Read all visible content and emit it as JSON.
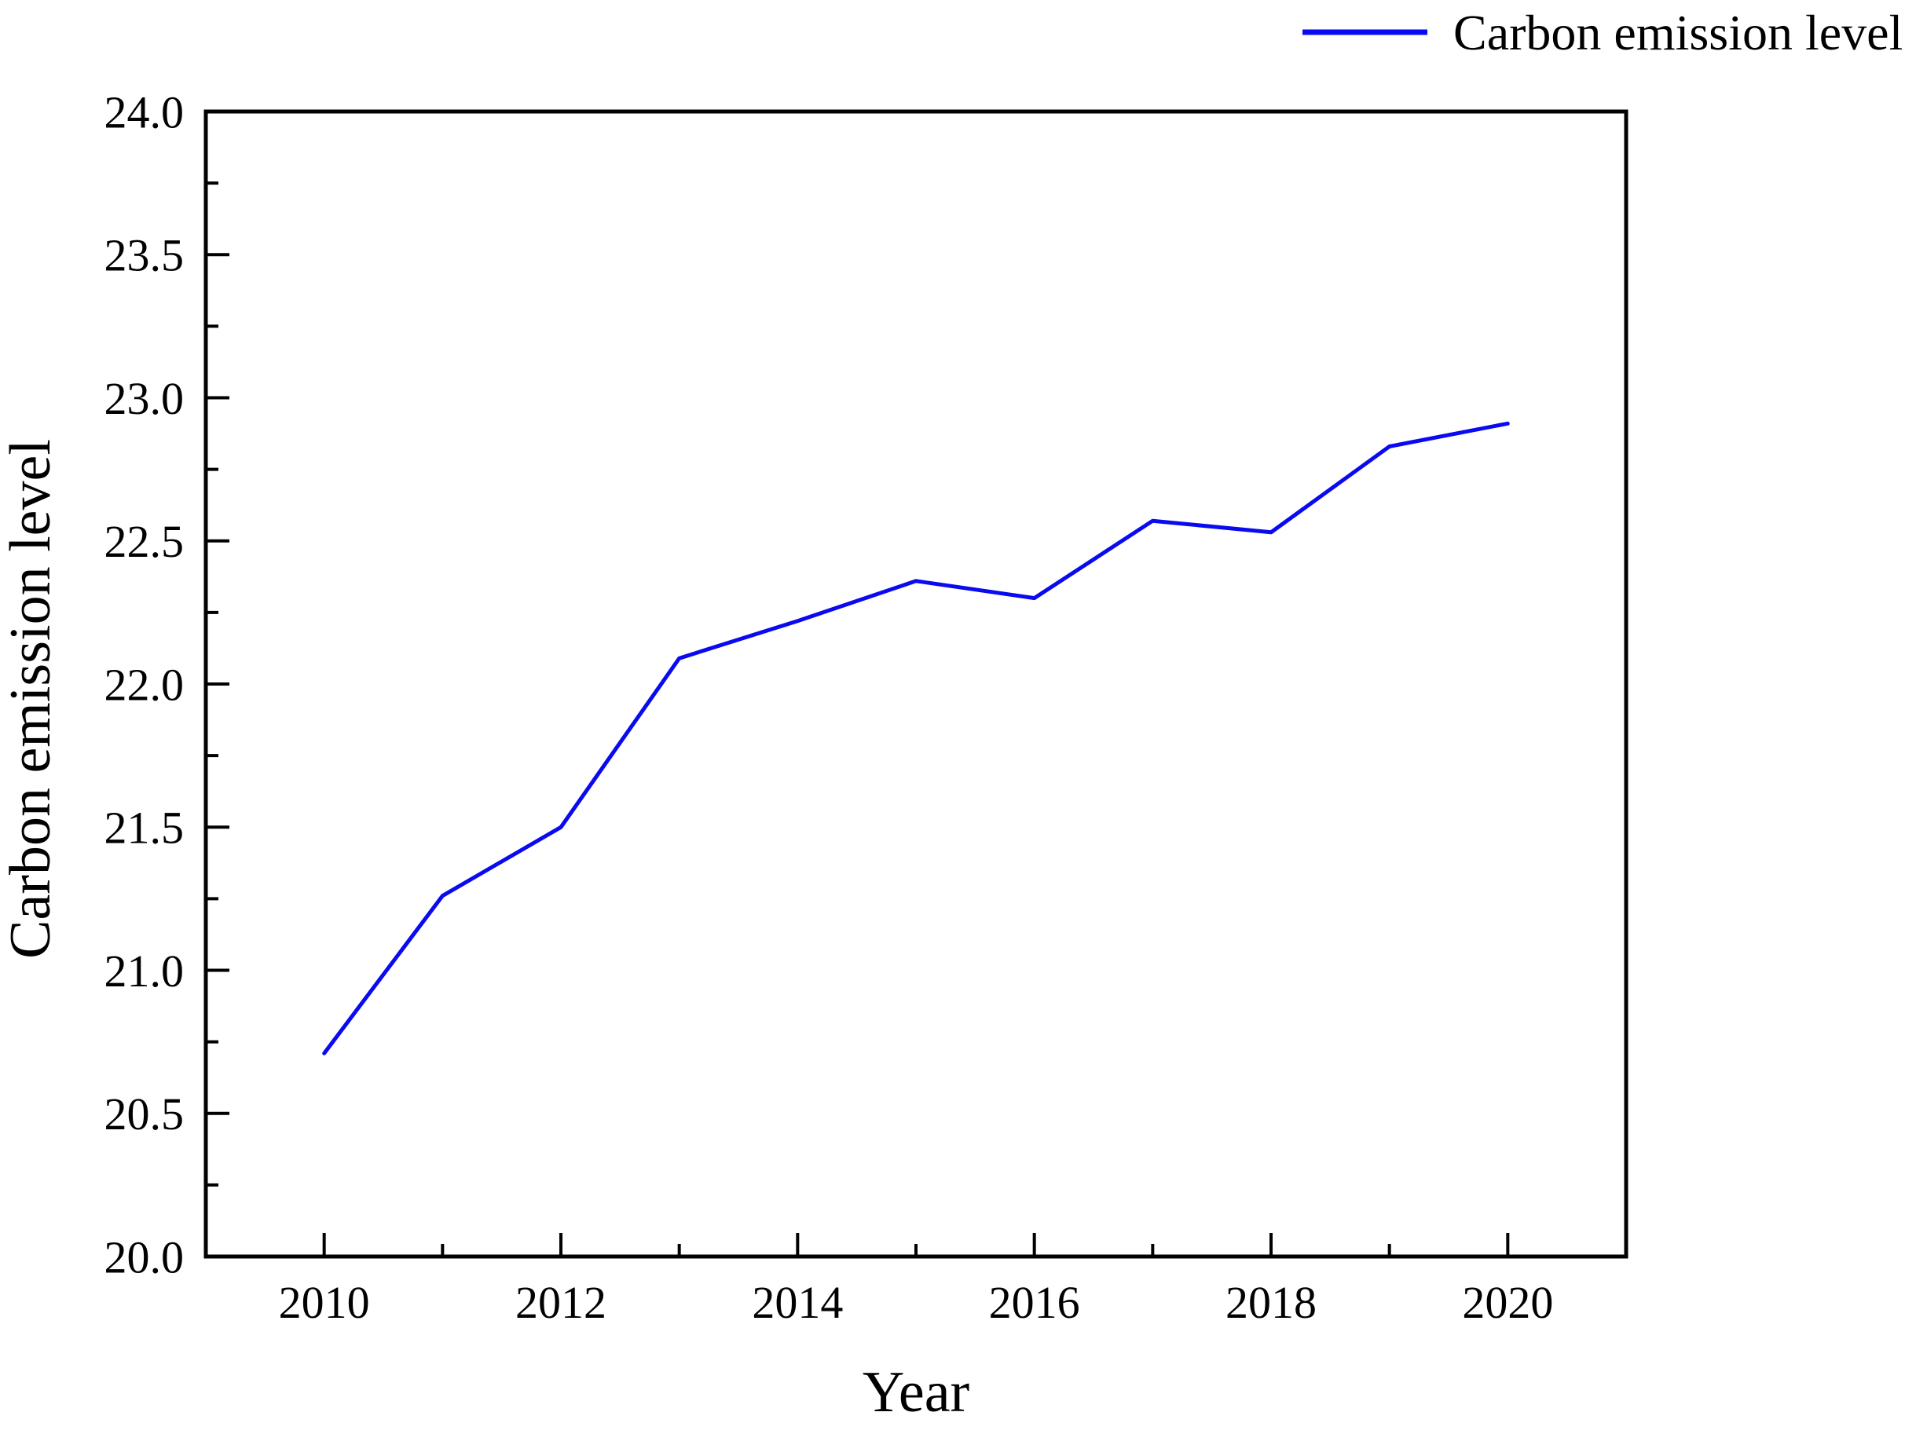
{
  "figure": {
    "background": "#ffffff"
  },
  "legend": {
    "label": "Carbon emission level",
    "position": "top-right-outside"
  },
  "axes": {
    "xlabel": "Year",
    "ylabel": "Carbon emission level"
  },
  "colors": {
    "line": "#0a0af0",
    "axis": "#000000",
    "text": "#000000",
    "background": "#ffffff"
  },
  "chart_data": {
    "type": "line",
    "title": "",
    "xlabel": "Year",
    "ylabel": "Carbon emission level",
    "x": [
      2010,
      2011,
      2012,
      2013,
      2014,
      2015,
      2016,
      2017,
      2018,
      2019,
      2020
    ],
    "series": [
      {
        "name": "Carbon emission level",
        "color": "#0a0af0",
        "values": [
          20.71,
          21.26,
          21.5,
          22.09,
          22.22,
          22.36,
          22.3,
          22.57,
          22.53,
          22.83,
          22.91
        ]
      }
    ],
    "xlim": [
      2009,
      2021
    ],
    "ylim": [
      20.0,
      24.0
    ],
    "x_major_ticks": [
      2010,
      2012,
      2014,
      2016,
      2018,
      2020
    ],
    "x_tick_labels": [
      "2010",
      "2012",
      "2014",
      "2016",
      "2018",
      "2020"
    ],
    "x_minor_ticks": [
      2011,
      2013,
      2015,
      2017,
      2019
    ],
    "y_major_ticks": [
      20.0,
      20.5,
      21.0,
      21.5,
      22.0,
      22.5,
      23.0,
      23.5,
      24.0
    ],
    "y_tick_labels": [
      "20.0",
      "20.5",
      "21.0",
      "21.5",
      "22.0",
      "22.5",
      "23.0",
      "23.5",
      "24.0"
    ],
    "y_minor_ticks": [
      20.25,
      20.75,
      21.25,
      21.75,
      22.25,
      22.75,
      23.25,
      23.75
    ],
    "grid": false,
    "legend_position": "top-right-outside",
    "markers": false
  }
}
